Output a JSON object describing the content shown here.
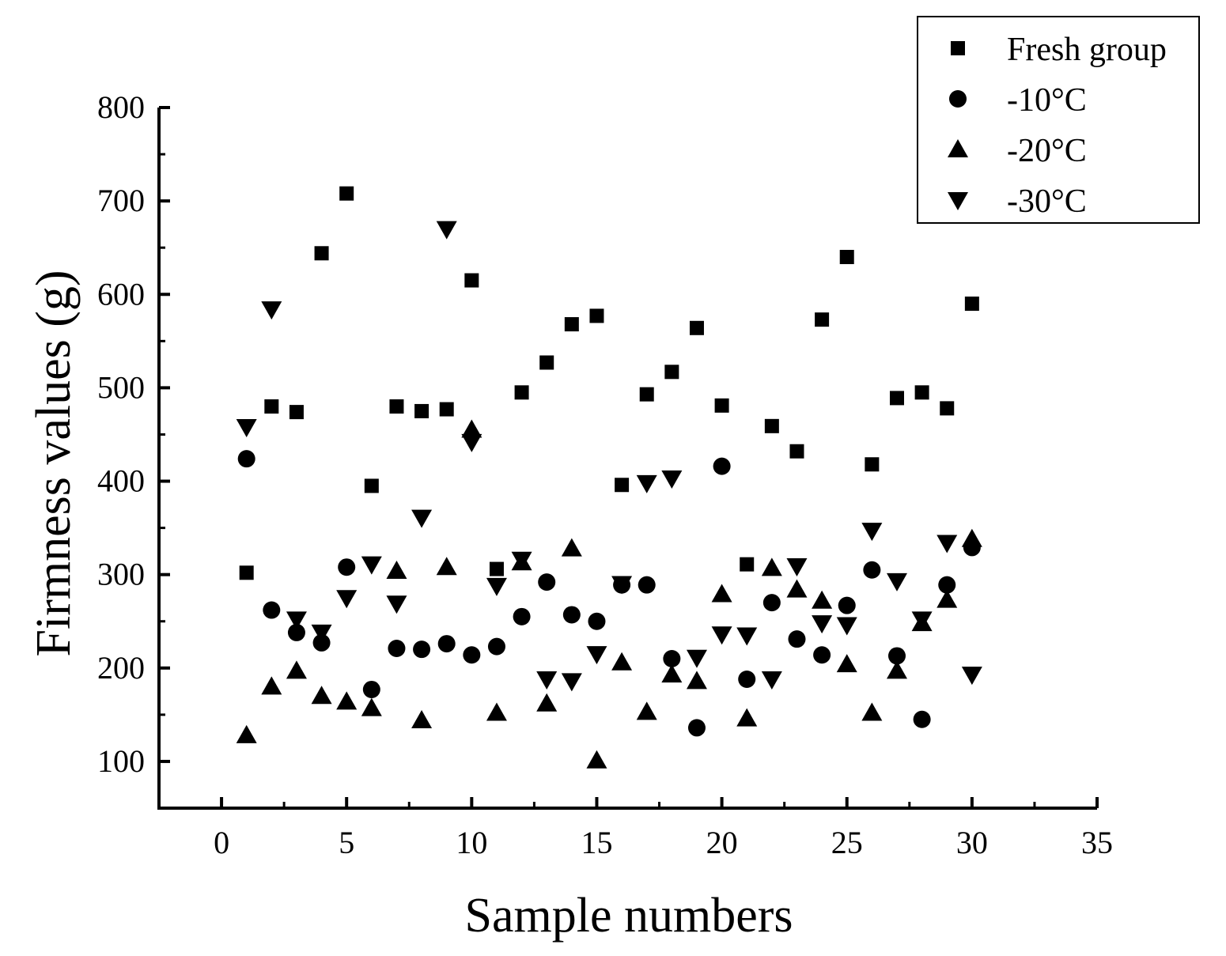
{
  "chart_data": {
    "type": "scatter",
    "xlabel": "Sample numbers",
    "ylabel": "Firmness values (g)",
    "xlim": [
      -2.5,
      35
    ],
    "ylim": [
      50,
      800
    ],
    "x_ticks": [
      0,
      5,
      10,
      15,
      20,
      25,
      30,
      35
    ],
    "y_ticks": [
      100,
      200,
      300,
      400,
      500,
      600,
      700,
      800
    ],
    "legend_position": "top-right",
    "grid": false,
    "x": [
      1,
      2,
      3,
      4,
      5,
      6,
      7,
      8,
      9,
      10,
      11,
      12,
      13,
      14,
      15,
      16,
      17,
      18,
      19,
      20,
      21,
      22,
      23,
      24,
      25,
      26,
      27,
      28,
      29,
      30
    ],
    "series": [
      {
        "name": "Fresh group",
        "marker": "square",
        "values": [
          302,
          480,
          474,
          644,
          708,
          395,
          480,
          475,
          477,
          615,
          306,
          495,
          527,
          568,
          577,
          396,
          493,
          517,
          564,
          481,
          311,
          459,
          432,
          573,
          640,
          418,
          489,
          495,
          478,
          590
        ]
      },
      {
        "name": "-10°C",
        "marker": "circle",
        "values": [
          424,
          262,
          238,
          227,
          308,
          177,
          221,
          220,
          226,
          214,
          223,
          255,
          292,
          257,
          250,
          289,
          289,
          210,
          136,
          416,
          188,
          270,
          231,
          214,
          267,
          305,
          213,
          145,
          289,
          329
        ]
      },
      {
        "name": "-20°C",
        "marker": "triangle-up",
        "values": [
          128,
          180,
          197,
          170,
          164,
          157,
          304,
          144,
          308,
          455,
          152,
          313,
          162,
          328,
          101,
          206,
          153,
          193,
          186,
          279,
          146,
          307,
          284,
          272,
          204,
          152,
          197,
          248,
          273,
          338
        ]
      },
      {
        "name": "-30°C",
        "marker": "triangle-down",
        "values": [
          458,
          584,
          252,
          238,
          275,
          311,
          269,
          361,
          670,
          442,
          288,
          316,
          188,
          186,
          215,
          290,
          398,
          403,
          211,
          236,
          235,
          188,
          309,
          248,
          246,
          347,
          293,
          252,
          334,
          193
        ]
      }
    ]
  }
}
